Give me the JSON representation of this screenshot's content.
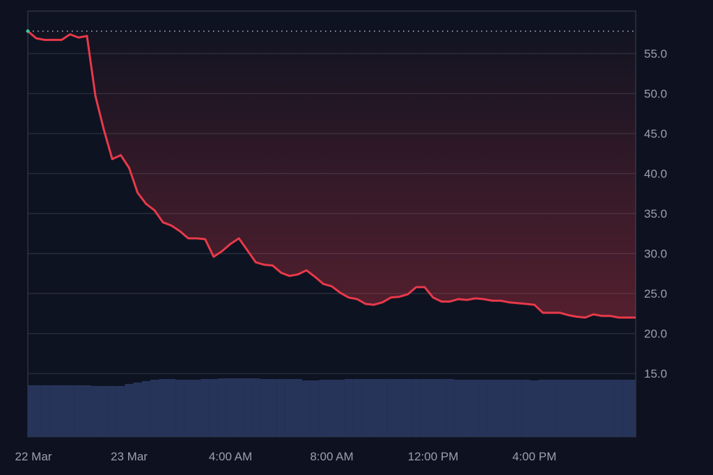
{
  "chart_data": {
    "type": "line",
    "title": "",
    "xlabel": "",
    "ylabel": "",
    "ylim": [
      7.1,
      60.3
    ],
    "grid": true,
    "y_axis_side": "right",
    "y_ticks": [
      "15.0",
      "20.0",
      "25.0",
      "30.0",
      "35.0",
      "40.0",
      "45.0",
      "50.0",
      "55.0"
    ],
    "x_ticks": [
      {
        "label": "22 Mar",
        "time": "22 Mar 20:00"
      },
      {
        "label": "23 Mar",
        "time": "23 Mar 00:00"
      },
      {
        "label": "4:00 AM",
        "time": "23 Mar 04:00"
      },
      {
        "label": "8:00 AM",
        "time": "23 Mar 08:00"
      },
      {
        "label": "12:00 PM",
        "time": "23 Mar 12:00"
      },
      {
        "label": "4:00 PM",
        "time": "23 Mar 16:00"
      }
    ],
    "baseline": 57.8,
    "colors": {
      "background": "#0e1220",
      "line": "#e8394a",
      "grid": "#2a3040",
      "volume": "#27345a",
      "start_marker": "#3ec99a",
      "tick_text": "#9aa0ad",
      "baseline": "#b9c0cc"
    },
    "series": [
      {
        "x": [
          "22 Mar 20:00",
          "22 Mar 20:20",
          "22 Mar 20:40",
          "22 Mar 21:00",
          "22 Mar 21:20",
          "22 Mar 21:40",
          "22 Mar 22:00",
          "22 Mar 22:20",
          "22 Mar 22:40",
          "22 Mar 23:00",
          "22 Mar 23:20",
          "22 Mar 23:40",
          "23 Mar 00:00",
          "23 Mar 00:20",
          "23 Mar 00:40",
          "23 Mar 01:00",
          "23 Mar 01:20",
          "23 Mar 01:40",
          "23 Mar 02:00",
          "23 Mar 02:20",
          "23 Mar 02:40",
          "23 Mar 03:00",
          "23 Mar 03:20",
          "23 Mar 03:40",
          "23 Mar 04:00",
          "23 Mar 04:20",
          "23 Mar 04:40",
          "23 Mar 05:00",
          "23 Mar 05:20",
          "23 Mar 05:40",
          "23 Mar 06:00",
          "23 Mar 06:20",
          "23 Mar 06:40",
          "23 Mar 07:00",
          "23 Mar 07:20",
          "23 Mar 07:40",
          "23 Mar 08:00",
          "23 Mar 08:20",
          "23 Mar 08:40",
          "23 Mar 09:00",
          "23 Mar 09:20",
          "23 Mar 09:40",
          "23 Mar 10:00",
          "23 Mar 10:20",
          "23 Mar 10:40",
          "23 Mar 11:00",
          "23 Mar 11:20",
          "23 Mar 11:40",
          "23 Mar 12:00",
          "23 Mar 12:20",
          "23 Mar 12:40",
          "23 Mar 13:00",
          "23 Mar 13:20",
          "23 Mar 13:40",
          "23 Mar 14:00",
          "23 Mar 14:20",
          "23 Mar 14:40",
          "23 Mar 15:00",
          "23 Mar 15:20",
          "23 Mar 15:40",
          "23 Mar 16:00",
          "23 Mar 16:20",
          "23 Mar 16:40",
          "23 Mar 17:00",
          "23 Mar 17:20",
          "23 Mar 17:40",
          "23 Mar 18:00",
          "23 Mar 18:20",
          "23 Mar 18:40",
          "23 Mar 19:00",
          "23 Mar 19:20",
          "23 Mar 19:40",
          "23 Mar 20:00"
        ],
        "values": [
          57.8,
          56.9,
          56.7,
          56.7,
          56.7,
          57.4,
          57.0,
          57.2,
          49.7,
          45.5,
          41.8,
          42.3,
          40.7,
          37.6,
          36.2,
          35.4,
          33.9,
          33.5,
          32.8,
          31.9,
          31.9,
          31.8,
          29.6,
          30.3,
          31.2,
          31.9,
          30.4,
          28.9,
          28.6,
          28.5,
          27.6,
          27.2,
          27.4,
          27.9,
          27.1,
          26.2,
          25.9,
          25.1,
          24.5,
          24.3,
          23.7,
          23.6,
          23.9,
          24.5,
          24.6,
          24.9,
          25.8,
          25.8,
          24.5,
          24.0,
          24.0,
          24.3,
          24.2,
          24.4,
          24.3,
          24.1,
          24.1,
          23.9,
          23.8,
          23.7,
          23.6,
          22.6,
          22.6,
          22.6,
          22.3,
          22.1,
          22.0,
          22.4,
          22.2,
          22.2,
          22.0,
          22.0,
          22.0
        ]
      }
    ],
    "volume_relative": [
      74,
      74,
      74,
      74,
      74,
      74,
      74,
      74,
      73,
      73,
      73,
      73,
      76,
      78,
      80,
      82,
      83,
      83,
      82,
      82,
      82,
      83,
      83,
      84,
      84,
      84,
      84,
      84,
      83,
      83,
      83,
      83,
      83,
      81,
      81,
      82,
      82,
      82,
      83,
      83,
      83,
      83,
      83,
      83,
      83,
      83,
      83,
      83,
      83,
      83,
      83,
      82,
      82,
      82,
      82,
      82,
      82,
      82,
      82,
      82,
      81,
      82,
      82,
      82,
      82,
      82,
      82,
      82,
      82,
      82,
      82,
      82,
      82
    ]
  }
}
